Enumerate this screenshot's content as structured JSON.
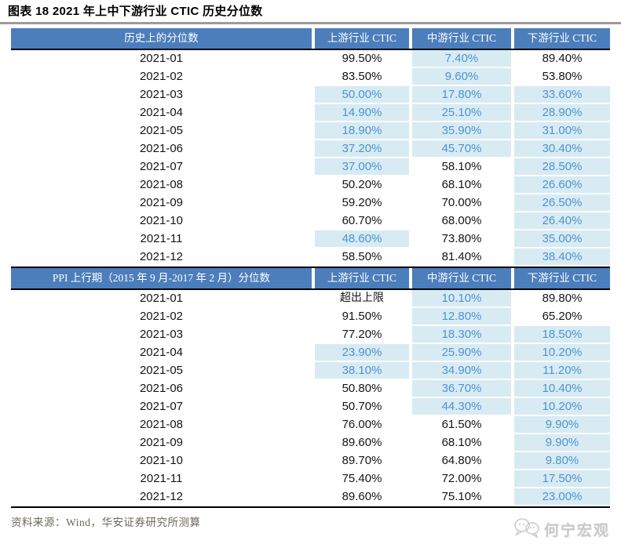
{
  "chart_data": {
    "type": "table",
    "title": "图表 18 2021 年上中下游行业 CTIC 历史分位数",
    "columns": [
      "上游行业 CTIC",
      "中游行业 CTIC",
      "下游行业 CTIC"
    ],
    "sections": [
      {
        "label": "历史上的分位数",
        "rows": [
          {
            "date": "2021-01",
            "values": [
              "99.50%",
              "7.40%",
              "89.40%"
            ],
            "hl": [
              false,
              true,
              false
            ]
          },
          {
            "date": "2021-02",
            "values": [
              "83.50%",
              "9.60%",
              "53.80%"
            ],
            "hl": [
              false,
              true,
              false
            ]
          },
          {
            "date": "2021-03",
            "values": [
              "50.00%",
              "17.80%",
              "33.60%"
            ],
            "hl": [
              true,
              true,
              true
            ]
          },
          {
            "date": "2021-04",
            "values": [
              "14.90%",
              "25.10%",
              "28.90%"
            ],
            "hl": [
              true,
              true,
              true
            ]
          },
          {
            "date": "2021-05",
            "values": [
              "18.90%",
              "35.90%",
              "31.00%"
            ],
            "hl": [
              true,
              true,
              true
            ]
          },
          {
            "date": "2021-06",
            "values": [
              "37.20%",
              "45.70%",
              "30.40%"
            ],
            "hl": [
              true,
              true,
              true
            ]
          },
          {
            "date": "2021-07",
            "values": [
              "37.00%",
              "58.10%",
              "28.50%"
            ],
            "hl": [
              true,
              false,
              true
            ]
          },
          {
            "date": "2021-08",
            "values": [
              "50.20%",
              "68.10%",
              "26.60%"
            ],
            "hl": [
              false,
              false,
              true
            ]
          },
          {
            "date": "2021-09",
            "values": [
              "59.20%",
              "70.00%",
              "26.50%"
            ],
            "hl": [
              false,
              false,
              true
            ]
          },
          {
            "date": "2021-10",
            "values": [
              "60.70%",
              "68.00%",
              "26.40%"
            ],
            "hl": [
              false,
              false,
              true
            ]
          },
          {
            "date": "2021-11",
            "values": [
              "48.60%",
              "73.80%",
              "35.00%"
            ],
            "hl": [
              true,
              false,
              true
            ]
          },
          {
            "date": "2021-12",
            "values": [
              "58.50%",
              "81.40%",
              "38.40%"
            ],
            "hl": [
              false,
              false,
              true
            ]
          }
        ]
      },
      {
        "label": "PPI 上行期（2015 年 9 月-2017 年 2 月）分位数",
        "rows": [
          {
            "date": "2021-01",
            "values": [
              "超出上限",
              "10.10%",
              "89.80%"
            ],
            "hl": [
              false,
              true,
              false
            ]
          },
          {
            "date": "2021-02",
            "values": [
              "91.50%",
              "12.80%",
              "65.20%"
            ],
            "hl": [
              false,
              true,
              false
            ]
          },
          {
            "date": "2021-03",
            "values": [
              "77.20%",
              "18.30%",
              "18.50%"
            ],
            "hl": [
              false,
              true,
              true
            ]
          },
          {
            "date": "2021-04",
            "values": [
              "23.90%",
              "25.90%",
              "10.20%"
            ],
            "hl": [
              true,
              true,
              true
            ]
          },
          {
            "date": "2021-05",
            "values": [
              "38.10%",
              "34.90%",
              "11.20%"
            ],
            "hl": [
              true,
              true,
              true
            ]
          },
          {
            "date": "2021-06",
            "values": [
              "50.80%",
              "36.70%",
              "10.40%"
            ],
            "hl": [
              false,
              true,
              true
            ]
          },
          {
            "date": "2021-07",
            "values": [
              "50.70%",
              "44.30%",
              "10.20%"
            ],
            "hl": [
              false,
              true,
              true
            ]
          },
          {
            "date": "2021-08",
            "values": [
              "76.00%",
              "61.50%",
              "9.90%"
            ],
            "hl": [
              false,
              false,
              true
            ]
          },
          {
            "date": "2021-09",
            "values": [
              "89.60%",
              "68.10%",
              "9.90%"
            ],
            "hl": [
              false,
              false,
              true
            ]
          },
          {
            "date": "2021-10",
            "values": [
              "89.70%",
              "64.80%",
              "9.80%"
            ],
            "hl": [
              false,
              false,
              true
            ]
          },
          {
            "date": "2021-11",
            "values": [
              "75.40%",
              "72.00%",
              "17.50%"
            ],
            "hl": [
              false,
              false,
              true
            ]
          },
          {
            "date": "2021-12",
            "values": [
              "89.60%",
              "75.10%",
              "23.00%"
            ],
            "hl": [
              false,
              false,
              true
            ]
          }
        ]
      }
    ],
    "layout": {
      "highlight_meaning": "cells shaded light blue with blue text",
      "grid": "off",
      "legend": "none"
    }
  },
  "colors": {
    "header_bg": "#4C7EBC",
    "highlight_bg": "#D8EBF3",
    "highlight_text": "#4D93D2",
    "source_text": "#6E675B"
  },
  "footer": {
    "source": "资料来源：Wind，华安证券研究所测算",
    "watermark": "何宁宏观"
  }
}
